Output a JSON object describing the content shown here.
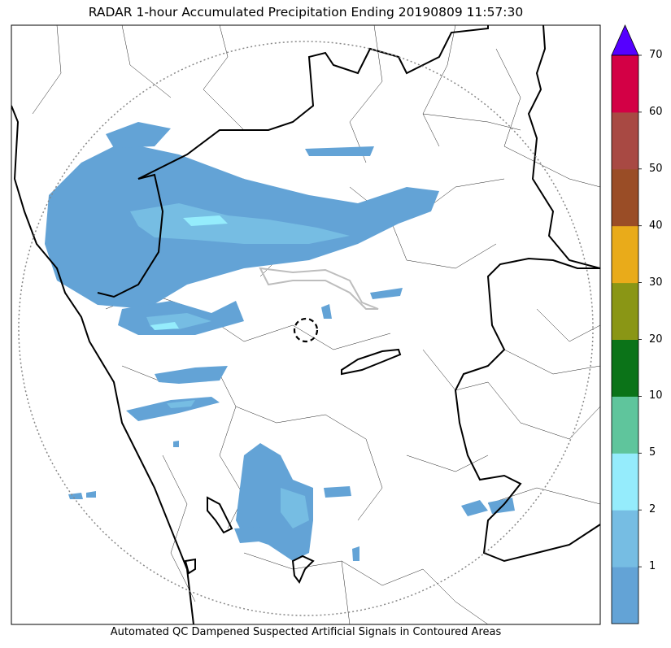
{
  "title": "RADAR 1-hour Accumulated Precipitation Ending 20190809 11:57:30",
  "caption": "Automated QC Dampened Suspected Artificial Signals in Contoured Areas",
  "colorbar": {
    "extend": "max",
    "extend_color": "#5500ff",
    "bins": [
      {
        "color": "#63a3d6"
      },
      {
        "color": "#76bde3"
      },
      {
        "color": "#95ecfc"
      },
      {
        "color": "#5fc59c"
      },
      {
        "color": "#0b7318"
      },
      {
        "color": "#8a9615"
      },
      {
        "color": "#e9ab1a"
      },
      {
        "color": "#9a4d26"
      },
      {
        "color": "#a84943"
      },
      {
        "color": "#d30045"
      }
    ],
    "tick_labels": [
      "1",
      "2",
      "5",
      "10",
      "20",
      "30",
      "40",
      "50",
      "60",
      "70"
    ]
  }
}
